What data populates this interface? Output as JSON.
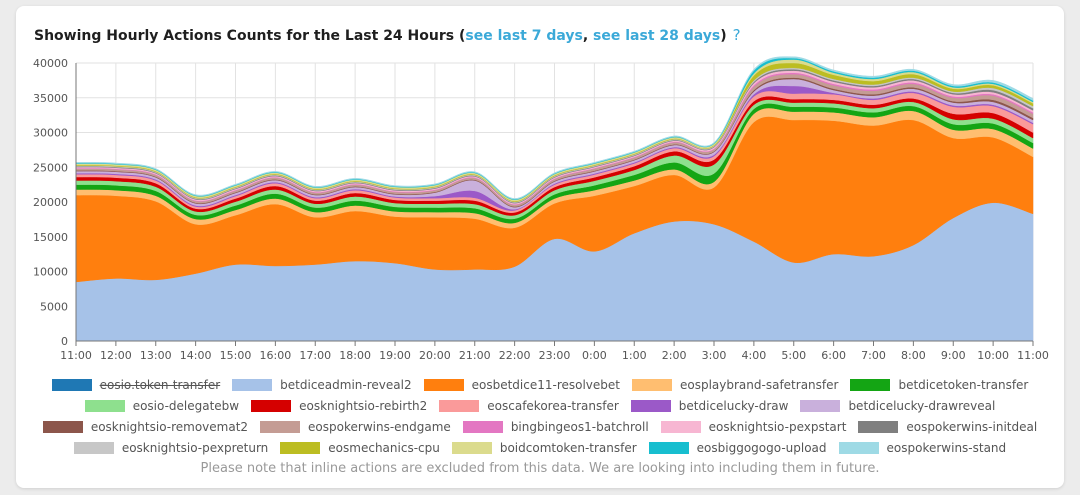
{
  "title": {
    "prefix": "Showing Hourly Actions Counts for the Last 24 Hours (",
    "link7": "see last 7 days",
    "sep": ", ",
    "link28": "see last 28 days",
    "suffix": ")",
    "help_glyph": "?"
  },
  "footnote": "Please note that inline actions are excluded from this data. We are looking into including them in future.",
  "chart_data": {
    "type": "area",
    "stacked": true,
    "x": [
      "11:00",
      "12:00",
      "13:00",
      "14:00",
      "15:00",
      "16:00",
      "17:00",
      "18:00",
      "19:00",
      "20:00",
      "21:00",
      "22:00",
      "23:00",
      "0:00",
      "1:00",
      "2:00",
      "3:00",
      "4:00",
      "5:00",
      "6:00",
      "7:00",
      "8:00",
      "9:00",
      "10:00",
      "11:00"
    ],
    "ylim": [
      0,
      40000
    ],
    "yticks": [
      0,
      5000,
      10000,
      15000,
      20000,
      25000,
      30000,
      35000,
      40000
    ],
    "grid": true,
    "legend_position": "bottom",
    "series": [
      {
        "name": "eosio.token-transfer",
        "color": "#1f78b4",
        "hidden": true,
        "values": [
          0,
          0,
          0,
          0,
          0,
          0,
          0,
          0,
          0,
          0,
          0,
          0,
          0,
          0,
          0,
          0,
          0,
          0,
          0,
          0,
          0,
          0,
          0,
          0,
          0
        ]
      },
      {
        "name": "betdiceadmin-reveal2",
        "color": "#a6c2e8",
        "values": [
          8500,
          9000,
          8800,
          9700,
          11000,
          10800,
          11000,
          11500,
          11200,
          10300,
          10300,
          10700,
          14700,
          12900,
          15500,
          17200,
          16800,
          14300,
          11300,
          12500,
          12200,
          13800,
          17700,
          19900,
          18300
        ]
      },
      {
        "name": "eosbetdice11-resolvebet",
        "color": "#ff7f0e",
        "values": [
          12500,
          11900,
          11300,
          7100,
          7100,
          8900,
          6800,
          7200,
          6700,
          7500,
          7300,
          5600,
          5100,
          8000,
          6800,
          6700,
          5300,
          17200,
          20500,
          19200,
          18800,
          18000,
          11500,
          9400,
          8200
        ]
      },
      {
        "name": "eosplaybrand-safetransfer",
        "color": "#ffbe70",
        "values": [
          800,
          800,
          800,
          750,
          750,
          800,
          750,
          800,
          750,
          750,
          800,
          700,
          700,
          800,
          800,
          800,
          800,
          1200,
          1200,
          1200,
          1200,
          1300,
          1200,
          1200,
          1200
        ]
      },
      {
        "name": "betdicetoken-transfer",
        "color": "#14a514",
        "values": [
          700,
          700,
          700,
          600,
          650,
          700,
          650,
          700,
          650,
          650,
          700,
          600,
          600,
          700,
          800,
          1000,
          1200,
          700,
          700,
          700,
          700,
          700,
          800,
          800,
          800
        ]
      },
      {
        "name": "eosio-delegatebw",
        "color": "#8ee08e",
        "values": [
          600,
          600,
          600,
          500,
          550,
          600,
          550,
          600,
          550,
          550,
          600,
          500,
          600,
          650,
          700,
          1000,
          1300,
          600,
          600,
          600,
          600,
          600,
          700,
          700,
          700
        ]
      },
      {
        "name": "eosknightsio-rebirth2",
        "color": "#d50000",
        "values": [
          500,
          500,
          500,
          400,
          450,
          500,
          450,
          500,
          450,
          450,
          500,
          400,
          450,
          500,
          550,
          600,
          700,
          500,
          500,
          500,
          500,
          500,
          800,
          800,
          800
        ]
      },
      {
        "name": "eoscafekorea-transfer",
        "color": "#fa9a9a",
        "values": [
          400,
          400,
          400,
          300,
          350,
          400,
          350,
          400,
          350,
          350,
          400,
          300,
          350,
          400,
          400,
          450,
          500,
          700,
          800,
          800,
          700,
          800,
          1000,
          1000,
          1200
        ]
      },
      {
        "name": "betdicelucky-draw",
        "color": "#9b59c8",
        "values": [
          150,
          150,
          150,
          150,
          150,
          150,
          150,
          150,
          150,
          300,
          1000,
          150,
          150,
          150,
          150,
          150,
          200,
          300,
          1100,
          200,
          200,
          200,
          200,
          200,
          200
        ]
      },
      {
        "name": "betdicelucky-drawreveal",
        "color": "#c9b0dc",
        "values": [
          300,
          300,
          300,
          300,
          300,
          300,
          300,
          300,
          300,
          500,
          1500,
          300,
          300,
          300,
          300,
          300,
          400,
          400,
          1000,
          400,
          400,
          400,
          400,
          400,
          400
        ]
      },
      {
        "name": "eosknightsio-removemat2",
        "color": "#8c564b",
        "values": [
          100,
          100,
          100,
          100,
          100,
          100,
          100,
          100,
          100,
          100,
          100,
          100,
          100,
          100,
          100,
          100,
          100,
          200,
          200,
          200,
          200,
          200,
          200,
          300,
          300
        ]
      },
      {
        "name": "eospokerwins-endgame",
        "color": "#c49c94",
        "values": [
          250,
          250,
          250,
          250,
          250,
          250,
          250,
          250,
          250,
          250,
          250,
          250,
          250,
          300,
          300,
          300,
          300,
          500,
          500,
          500,
          500,
          500,
          500,
          600,
          600
        ]
      },
      {
        "name": "bingbingeos1-batchroll",
        "color": "#e377c2",
        "values": [
          80,
          80,
          80,
          80,
          80,
          80,
          80,
          80,
          80,
          80,
          80,
          80,
          80,
          80,
          80,
          80,
          80,
          200,
          200,
          200,
          200,
          200,
          200,
          200,
          200
        ]
      },
      {
        "name": "eosknightsio-pexpstart",
        "color": "#f7b6d2",
        "values": [
          150,
          150,
          150,
          150,
          150,
          150,
          150,
          150,
          150,
          150,
          150,
          150,
          150,
          150,
          150,
          150,
          200,
          300,
          300,
          300,
          300,
          300,
          300,
          300,
          300
        ]
      },
      {
        "name": "eospokerwins-initdeal",
        "color": "#7f7f7f",
        "values": [
          100,
          100,
          100,
          100,
          100,
          100,
          100,
          100,
          100,
          100,
          100,
          100,
          100,
          100,
          100,
          100,
          100,
          200,
          200,
          200,
          200,
          200,
          200,
          300,
          300
        ]
      },
      {
        "name": "eosknightsio-pexpreturn",
        "color": "#c7c7c7",
        "values": [
          100,
          100,
          100,
          100,
          100,
          100,
          100,
          100,
          100,
          100,
          100,
          100,
          100,
          100,
          100,
          100,
          100,
          200,
          200,
          200,
          200,
          200,
          200,
          300,
          300
        ]
      },
      {
        "name": "eosmechanics-cpu",
        "color": "#bcbd22",
        "values": [
          100,
          100,
          100,
          100,
          100,
          100,
          100,
          100,
          100,
          100,
          100,
          100,
          100,
          100,
          100,
          100,
          100,
          700,
          700,
          600,
          500,
          500,
          400,
          400,
          400
        ]
      },
      {
        "name": "boidcomtoken-transfer",
        "color": "#dbdb8d",
        "values": [
          200,
          200,
          200,
          200,
          200,
          200,
          200,
          200,
          200,
          200,
          200,
          200,
          200,
          200,
          200,
          200,
          200,
          300,
          500,
          300,
          300,
          300,
          200,
          200,
          200
        ]
      },
      {
        "name": "eosbiggogogo-upload",
        "color": "#17becf",
        "values": [
          80,
          80,
          80,
          80,
          80,
          80,
          80,
          80,
          80,
          80,
          80,
          80,
          80,
          80,
          80,
          80,
          80,
          400,
          200,
          200,
          200,
          200,
          200,
          200,
          200
        ]
      },
      {
        "name": "eospokerwins-stand",
        "color": "#9edae5",
        "values": [
          100,
          100,
          100,
          100,
          100,
          100,
          100,
          100,
          100,
          100,
          100,
          100,
          100,
          100,
          100,
          100,
          100,
          200,
          200,
          200,
          200,
          200,
          200,
          300,
          300
        ]
      }
    ]
  }
}
